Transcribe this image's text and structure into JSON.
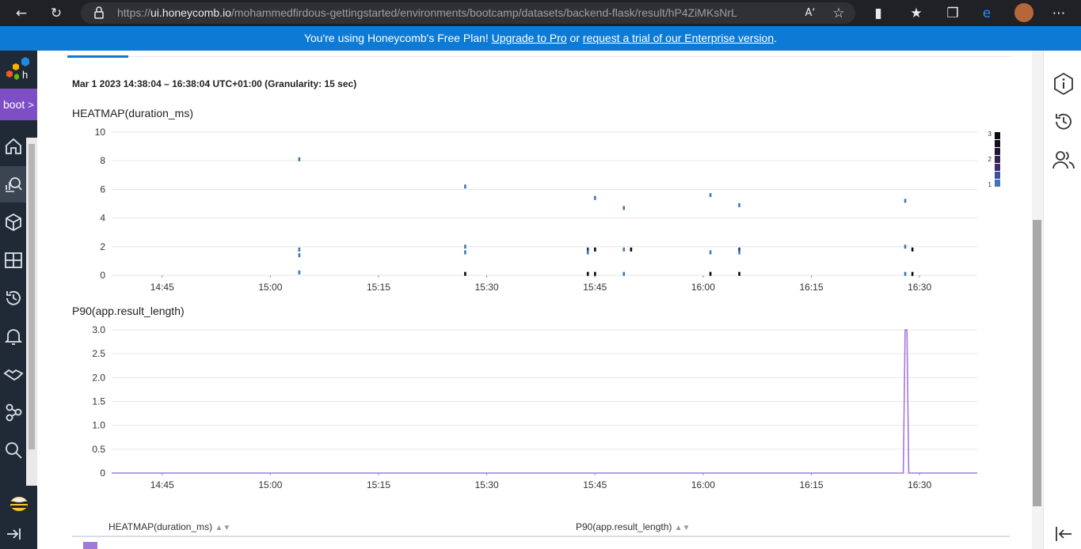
{
  "browser": {
    "url_prefix": "https://",
    "url_host": "ui.honeycomb.io",
    "url_path": "/mohammedfirdous-gettingstarted/environments/bootcamp/datasets/backend-flask/result/hP4ZiMKsNrL"
  },
  "banner": {
    "text_before": "You're using Honeycomb's Free Plan! ",
    "upgrade_link": "Upgrade to Pro",
    "text_middle": " or ",
    "trial_link": "request a trial of our Enterprise version",
    "text_after": "."
  },
  "nav": {
    "env_label": "boot",
    "env_chevron": ">",
    "items": [
      "home-icon",
      "query-icon",
      "datasets-icon",
      "boards-icon",
      "history-icon",
      "triggers-icon",
      "slo-icon",
      "service-map-icon",
      "search-icon"
    ]
  },
  "query": {
    "time_range": "Mar 1 2023 14:38:04 – 16:38:04 UTC+01:00 (Granularity: 15 sec)"
  },
  "colors": {
    "accent": "#0d7bd6",
    "env_purple": "#7d4ec6",
    "line_purple": "#a17ad8",
    "heat_low": "#3c78b8",
    "heat_mid": "#3f2a6b",
    "heat_high": "#0b0a10"
  },
  "chart_data": [
    {
      "type": "heatmap",
      "title": "HEATMAP(duration_ms)",
      "ylim": [
        0,
        10
      ],
      "yticks": [
        "0",
        "2",
        "4",
        "6",
        "8",
        "10"
      ],
      "xticks": [
        "14:45",
        "15:00",
        "15:15",
        "15:30",
        "15:45",
        "16:00",
        "16:15",
        "16:30"
      ],
      "legend_ticks": [
        "3",
        "2",
        "1"
      ],
      "legend_placement": "right",
      "grid": true,
      "points": [
        {
          "t": "15:04",
          "y": 8.1,
          "count": 1
        },
        {
          "t": "15:04",
          "y": 1.4,
          "count": 1
        },
        {
          "t": "15:04",
          "y": 1.8,
          "count": 1
        },
        {
          "t": "15:04",
          "y": 0.2,
          "count": 1
        },
        {
          "t": "15:27",
          "y": 6.2,
          "count": 1
        },
        {
          "t": "15:27",
          "y": 2.0,
          "count": 1
        },
        {
          "t": "15:27",
          "y": 1.6,
          "count": 1
        },
        {
          "t": "15:27",
          "y": 0.1,
          "count": 3
        },
        {
          "t": "15:44",
          "y": 1.8,
          "count": 2
        },
        {
          "t": "15:44",
          "y": 1.6,
          "count": 1
        },
        {
          "t": "15:44",
          "y": 0.1,
          "count": 3
        },
        {
          "t": "15:45",
          "y": 5.4,
          "count": 1
        },
        {
          "t": "15:45",
          "y": 1.8,
          "count": 3
        },
        {
          "t": "15:45",
          "y": 0.1,
          "count": 3
        },
        {
          "t": "15:49",
          "y": 4.7,
          "count": 1
        },
        {
          "t": "15:49",
          "y": 1.8,
          "count": 1
        },
        {
          "t": "15:49",
          "y": 0.1,
          "count": 1
        },
        {
          "t": "15:50",
          "y": 1.8,
          "count": 3
        },
        {
          "t": "16:01",
          "y": 5.6,
          "count": 1
        },
        {
          "t": "16:01",
          "y": 1.6,
          "count": 1
        },
        {
          "t": "16:01",
          "y": 0.1,
          "count": 3
        },
        {
          "t": "16:05",
          "y": 4.9,
          "count": 1
        },
        {
          "t": "16:05",
          "y": 1.8,
          "count": 2
        },
        {
          "t": "16:05",
          "y": 1.6,
          "count": 1
        },
        {
          "t": "16:05",
          "y": 0.1,
          "count": 3
        },
        {
          "t": "16:28",
          "y": 5.2,
          "count": 1
        },
        {
          "t": "16:28",
          "y": 2.0,
          "count": 1
        },
        {
          "t": "16:28",
          "y": 0.1,
          "count": 1
        },
        {
          "t": "16:29",
          "y": 1.8,
          "count": 3
        },
        {
          "t": "16:29",
          "y": 0.1,
          "count": 3
        }
      ]
    },
    {
      "type": "line",
      "title": "P90(app.result_length)",
      "ylim": [
        0,
        3.0
      ],
      "yticks": [
        "0",
        "0.5",
        "1.0",
        "1.5",
        "2.0",
        "2.5",
        "3.0"
      ],
      "xticks": [
        "14:45",
        "15:00",
        "15:15",
        "15:30",
        "15:45",
        "16:00",
        "16:15",
        "16:30"
      ],
      "grid": true,
      "series": [
        {
          "x": [
            "14:38",
            "16:27:45",
            "16:28:00",
            "16:28:15",
            "16:28:30",
            "16:38"
          ],
          "values": [
            0,
            0,
            3.0,
            3.0,
            0,
            0
          ]
        }
      ]
    }
  ],
  "table": {
    "col1": "HEATMAP(duration_ms)",
    "col2": "P90(app.result_length)"
  }
}
